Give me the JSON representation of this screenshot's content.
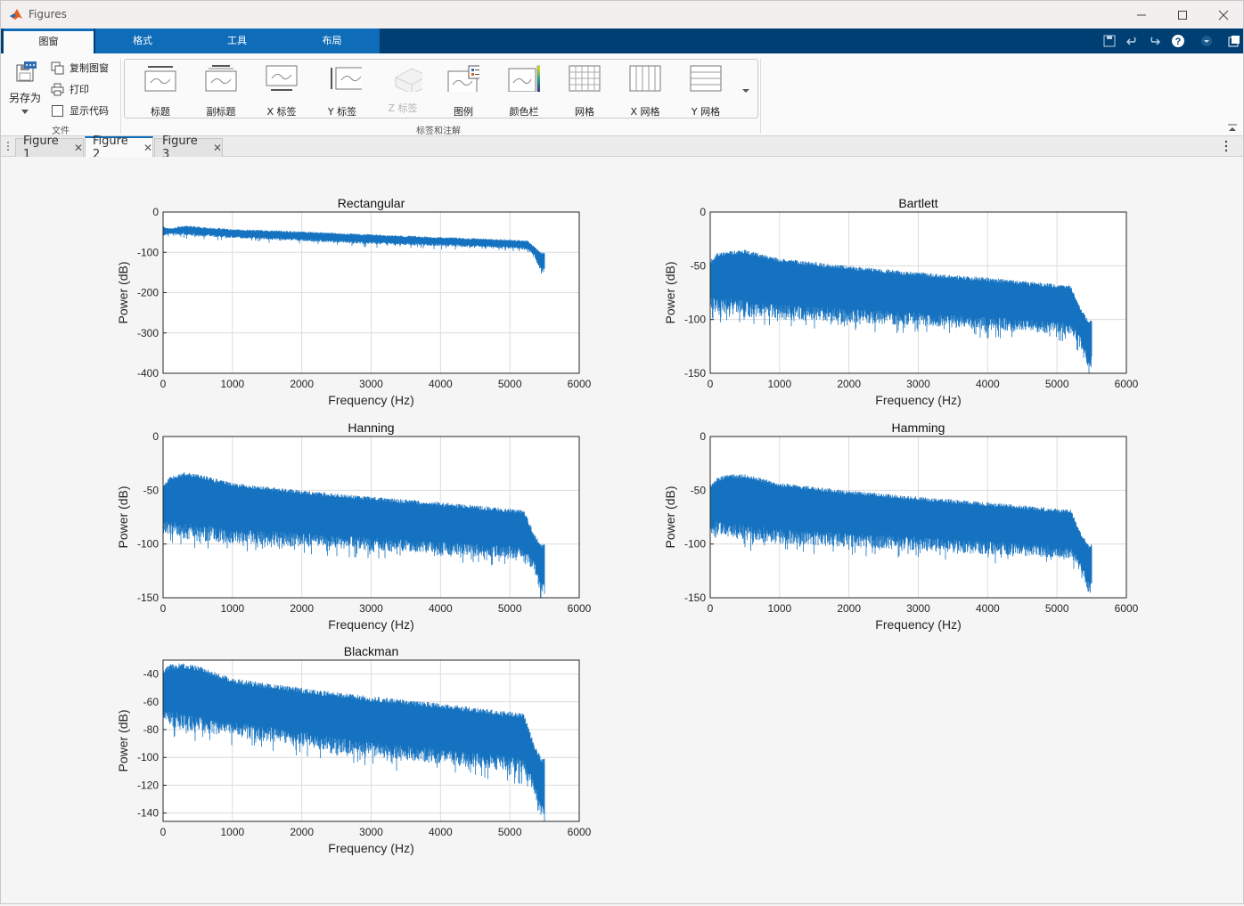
{
  "window": {
    "title": "Figures"
  },
  "ribbon_tabs": [
    "图窗",
    "格式",
    "工具",
    "布局"
  ],
  "file_section": {
    "save_as": "另存为",
    "copy_figure": "复制图窗",
    "print": "打印",
    "show_code": "显示代码",
    "label": "文件"
  },
  "gallery": {
    "items": [
      "标题",
      "副标题",
      "X 标签",
      "Y 标签",
      "Z 标签",
      "图例",
      "颜色栏",
      "网格",
      "X 网格",
      "Y 网格"
    ],
    "label": "标签和注解"
  },
  "figure_tabs": [
    "Figure 1",
    "Figure 2",
    "Figure 3"
  ],
  "active_figure_tab": "Figure 2",
  "colors": {
    "series": "#1472c0",
    "tabbar": "#003f73",
    "accent": "#0e6cb8"
  },
  "chart_data": [
    {
      "type": "line",
      "title": "Rectangular",
      "xlabel": "Frequency (Hz)",
      "ylabel": "Power (dB)",
      "xlim": [
        0,
        6000
      ],
      "ylim": [
        -400,
        0
      ],
      "xticks": [
        "0",
        "1000",
        "2000",
        "3000",
        "4000",
        "5000",
        "6000"
      ],
      "yticks": [
        "0",
        "-100",
        "-200",
        "-300",
        "-400"
      ],
      "grid": true,
      "x": [
        0,
        100,
        300,
        500,
        1000,
        2000,
        3000,
        4000,
        5000,
        5250,
        5350,
        5450,
        5500
      ],
      "upper": [
        -35,
        -40,
        -33,
        -36,
        -42,
        -48,
        -55,
        -62,
        -68,
        -70,
        -85,
        -100,
        -100
      ],
      "lower": [
        -60,
        -55,
        -58,
        -60,
        -65,
        -72,
        -80,
        -85,
        -90,
        -95,
        -110,
        -150,
        -150
      ]
    },
    {
      "type": "line",
      "title": "Bartlett",
      "xlabel": "Frequency (Hz)",
      "ylabel": "Power (dB)",
      "xlim": [
        0,
        6000
      ],
      "ylim": [
        -150,
        0
      ],
      "xticks": [
        "0",
        "1000",
        "2000",
        "3000",
        "4000",
        "5000",
        "6000"
      ],
      "yticks": [
        "0",
        "-50",
        "-100",
        "-150"
      ],
      "grid": true,
      "x": [
        0,
        100,
        300,
        500,
        1000,
        2000,
        3000,
        4000,
        5000,
        5200,
        5350,
        5450,
        5500
      ],
      "upper": [
        -45,
        -38,
        -36,
        -35,
        -43,
        -50,
        -56,
        -61,
        -67,
        -68,
        -90,
        -100,
        -100
      ],
      "lower": [
        -90,
        -95,
        -95,
        -98,
        -100,
        -103,
        -106,
        -110,
        -113,
        -115,
        -125,
        -145,
        -145
      ]
    },
    {
      "type": "line",
      "title": "Hanning",
      "xlabel": "Frequency (Hz)",
      "ylabel": "Power (dB)",
      "xlim": [
        0,
        6000
      ],
      "ylim": [
        -150,
        0
      ],
      "xticks": [
        "0",
        "1000",
        "2000",
        "3000",
        "4000",
        "5000",
        "6000"
      ],
      "yticks": [
        "0",
        "-50",
        "-100",
        "-150"
      ],
      "grid": true,
      "x": [
        0,
        100,
        300,
        500,
        1000,
        2000,
        3000,
        4000,
        5000,
        5200,
        5350,
        5450,
        5500
      ],
      "upper": [
        -45,
        -37,
        -33,
        -35,
        -43,
        -50,
        -56,
        -61,
        -67,
        -68,
        -90,
        -100,
        -100
      ],
      "lower": [
        -90,
        -92,
        -95,
        -98,
        -100,
        -103,
        -106,
        -110,
        -113,
        -115,
        -125,
        -148,
        -148
      ]
    },
    {
      "type": "line",
      "title": "Hamming",
      "xlabel": "Frequency (Hz)",
      "ylabel": "Power (dB)",
      "xlim": [
        0,
        6000
      ],
      "ylim": [
        -150,
        0
      ],
      "xticks": [
        "0",
        "1000",
        "2000",
        "3000",
        "4000",
        "5000",
        "6000"
      ],
      "yticks": [
        "0",
        "-50",
        "-100",
        "-150"
      ],
      "grid": true,
      "x": [
        0,
        100,
        300,
        500,
        1000,
        2000,
        3000,
        4000,
        5000,
        5200,
        5350,
        5450,
        5500
      ],
      "upper": [
        -45,
        -38,
        -35,
        -35,
        -43,
        -50,
        -56,
        -61,
        -67,
        -68,
        -90,
        -100,
        -100
      ],
      "lower": [
        -90,
        -92,
        -95,
        -98,
        -100,
        -103,
        -106,
        -110,
        -113,
        -115,
        -125,
        -145,
        -145
      ]
    },
    {
      "type": "line",
      "title": "Blackman",
      "xlabel": "Frequency (Hz)",
      "ylabel": "Power (dB)",
      "xlim": [
        0,
        6000
      ],
      "ylim": [
        -146,
        -30
      ],
      "xticks": [
        "0",
        "1000",
        "2000",
        "3000",
        "4000",
        "5000",
        "6000"
      ],
      "yticks": [
        "-40",
        "-60",
        "-80",
        "-100",
        "-120",
        "-140"
      ],
      "grid": true,
      "x": [
        0,
        100,
        300,
        500,
        1000,
        2000,
        3000,
        4000,
        5000,
        5200,
        5350,
        5450,
        5500
      ],
      "upper": [
        -36,
        -33,
        -32,
        -34,
        -43,
        -50,
        -56,
        -61,
        -67,
        -68,
        -90,
        -100,
        -100
      ],
      "lower": [
        -75,
        -78,
        -80,
        -82,
        -85,
        -92,
        -100,
        -105,
        -110,
        -113,
        -125,
        -143,
        -143
      ]
    }
  ]
}
